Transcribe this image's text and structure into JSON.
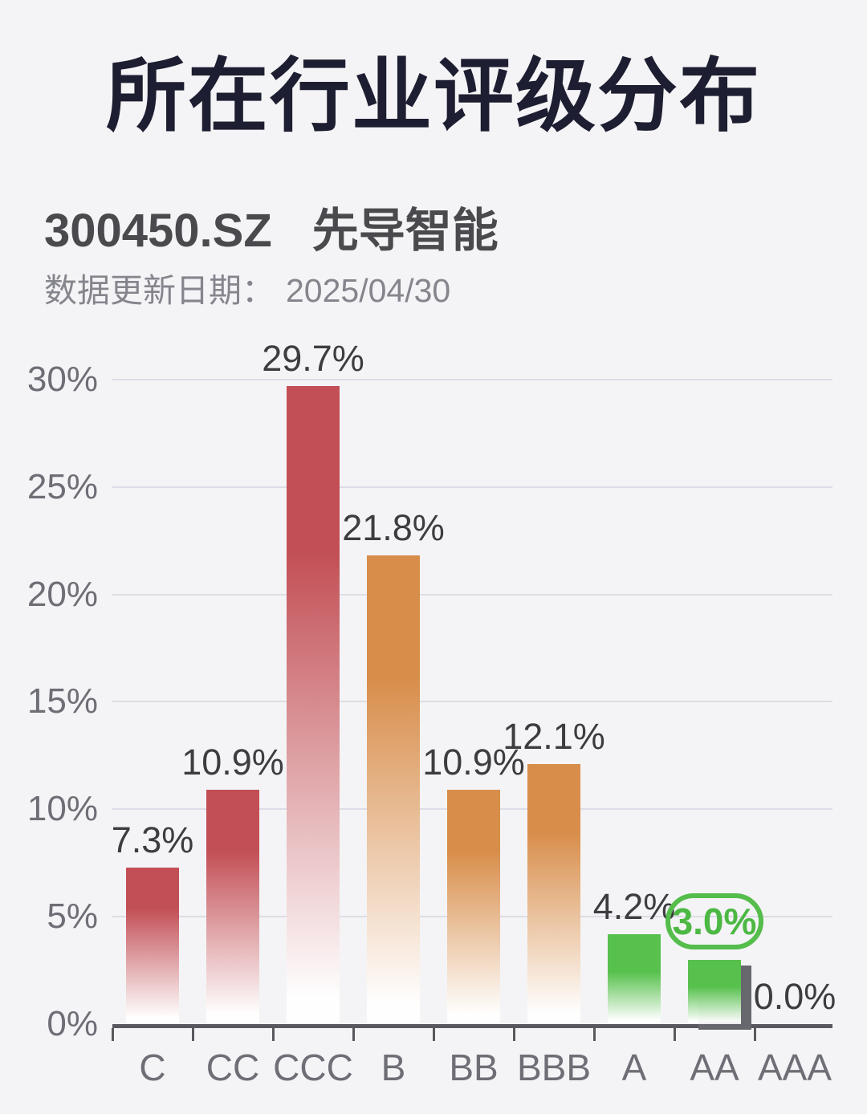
{
  "page": {
    "title": "所在行业评级分布",
    "stock_code": "300450.SZ",
    "stock_name": "先导智能",
    "update_label": "数据更新日期：",
    "update_date": "2025/04/30"
  },
  "colors": {
    "background": "#f4f4f6",
    "title_text": "#1e1e32",
    "stock_text": "#4a4a4e",
    "date_text": "#85858d",
    "gridline": "#dcdde6",
    "axis": "#58585e",
    "axis_tick_label": "#6e6e76",
    "data_label": "#3c3c41",
    "bar_red": "#c24f55",
    "bar_orange": "#d88d4a",
    "bar_green": "#58c14e",
    "highlight_border": "#55bd4b",
    "highlight_text": "#4cb843",
    "highlight_shadow": "#67676e"
  },
  "chart_data": {
    "type": "bar",
    "categories": [
      "C",
      "CC",
      "CCC",
      "B",
      "BB",
      "BBB",
      "A",
      "AA",
      "AAA"
    ],
    "values": [
      7.3,
      10.9,
      29.7,
      21.8,
      10.9,
      12.1,
      4.2,
      3.0,
      0.0
    ],
    "value_labels": [
      "7.3%",
      "10.9%",
      "29.7%",
      "21.8%",
      "10.9%",
      "12.1%",
      "4.2%",
      "3.0%",
      "0.0%"
    ],
    "bar_color_keys": [
      "red",
      "red",
      "red",
      "orange",
      "orange",
      "orange",
      "green",
      "green",
      "none"
    ],
    "highlighted_category": "AA",
    "highlight_style": "green-pill-outline-and-gray-shadow-bar",
    "ylim": [
      0,
      30
    ],
    "ytick_values": [
      0,
      5,
      10,
      15,
      20,
      25,
      30
    ],
    "ytick_labels": [
      "0%",
      "5%",
      "10%",
      "15%",
      "20%",
      "25%",
      "30%"
    ],
    "grid": true,
    "legend": "none",
    "bar_gradient": "solid color at top fading to white at bottom",
    "title": "所在行业评级分布",
    "xlabel": "",
    "ylabel": ""
  }
}
